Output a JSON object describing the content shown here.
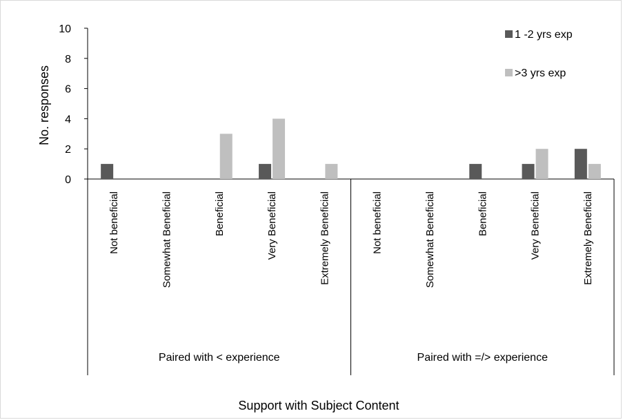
{
  "chart_data": {
    "type": "bar",
    "title": "",
    "xlabel": "Support with  Subject Content",
    "ylabel": "No. responses",
    "ylim": [
      0,
      10
    ],
    "yticks": [
      0,
      2,
      4,
      6,
      8,
      10
    ],
    "grid": false,
    "legend_position": "top-right",
    "groups": [
      "Paired with < experience",
      "Paired with =/> experience"
    ],
    "categories": [
      "Not beneficial",
      "Somewhat  Beneficial",
      "Beneficial",
      "Very Beneficial",
      "Extremely Beneficial",
      "Not beneficial",
      "Somewhat  Beneficial",
      "Beneficial",
      "Very Beneficial",
      "Extremely Beneficial"
    ],
    "series": [
      {
        "name": "1 -2 yrs exp",
        "color": "#595959",
        "values": [
          1,
          0,
          0,
          1,
          0,
          0,
          0,
          1,
          1,
          2
        ]
      },
      {
        "name": ">3 yrs exp",
        "color": "#bfbfbf",
        "values": [
          0,
          0,
          3,
          4,
          1,
          0,
          0,
          0,
          2,
          1
        ]
      }
    ]
  }
}
